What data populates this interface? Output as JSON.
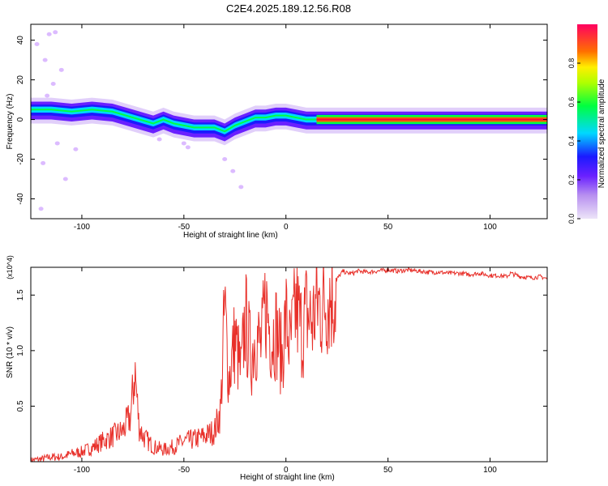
{
  "title": "C2E4.2025.189.12.56.R08",
  "chart_data": [
    {
      "type": "heatmap",
      "title": "C2E4.2025.189.12.56.R08",
      "xlabel": "Height of straight line (km)",
      "ylabel": "Frequency (Hz)",
      "xlim": [
        -125,
        128
      ],
      "ylim": [
        -50,
        48
      ],
      "x_ticks": [
        -100,
        -50,
        0,
        50,
        100
      ],
      "y_ticks": [
        -40,
        -20,
        0,
        20,
        40
      ],
      "colorbar": {
        "label": "Normalized spectral amplitude",
        "range": [
          0,
          1
        ],
        "ticks": [
          "0.0",
          "0.2",
          "0.4",
          "0.6",
          "0.8"
        ],
        "colors": [
          "#e6dcf5",
          "#9a3cff",
          "#1a1aff",
          "#00e5ff",
          "#00ff40",
          "#ffee00",
          "#ff6000",
          "#ff0060"
        ]
      },
      "ridge": {
        "name": "dominant frequency",
        "x": [
          -125,
          -115,
          -105,
          -95,
          -85,
          -75,
          -65,
          -60,
          -55,
          -45,
          -35,
          -30,
          -25,
          -20,
          -15,
          -10,
          -5,
          0,
          5,
          10,
          15,
          20,
          128
        ],
        "y": [
          5,
          5,
          4,
          5,
          4,
          1,
          -2,
          0,
          -2,
          -4,
          -4,
          -6,
          -3,
          -1,
          1,
          1,
          2,
          2,
          1,
          0,
          0,
          0,
          0
        ]
      },
      "scatter_points": {
        "x": [
          -122,
          -118,
          -116,
          -113,
          -114,
          -110,
          -112,
          -119,
          -103,
          -62,
          -50,
          -48,
          -30,
          -26,
          -22,
          -120,
          -117,
          -108
        ],
        "y": [
          38,
          30,
          43,
          44,
          18,
          25,
          -12,
          -22,
          -15,
          -10,
          -12,
          -14,
          -20,
          -26,
          -34,
          -45,
          12,
          -30
        ]
      }
    },
    {
      "type": "line",
      "xlabel": "Height of straight line (km)",
      "ylabel": "SNR (10 * v/v)",
      "y_multiplier": "(x10^4)",
      "xlim": [
        -125,
        128
      ],
      "ylim": [
        0,
        1.75
      ],
      "x_ticks": [
        -100,
        -50,
        0,
        50,
        100
      ],
      "y_ticks": [
        "0.5",
        "1.0",
        "1.5"
      ],
      "color": "#e8302a",
      "series": [
        {
          "x": [
            -125,
            -120,
            -115,
            -110,
            -105,
            -100,
            -95,
            -90,
            -85,
            -80,
            -76,
            -74,
            -72,
            -70,
            -65,
            -60,
            -55,
            -50,
            -45,
            -40,
            -35,
            -32,
            -30,
            -28,
            -25,
            -22,
            -20,
            -17,
            -15,
            -12,
            -10,
            -7,
            -5,
            -2,
            0,
            2,
            5,
            8,
            10,
            13,
            15,
            18,
            20,
            22,
            25,
            28,
            30,
            33,
            35,
            40,
            45,
            50,
            55,
            60,
            65,
            70,
            75,
            80,
            85,
            90,
            95,
            100,
            105,
            108,
            110,
            115,
            120,
            125,
            128
          ],
          "y": [
            0.02,
            0.03,
            0.05,
            0.05,
            0.08,
            0.1,
            0.14,
            0.2,
            0.25,
            0.3,
            0.45,
            0.9,
            0.35,
            0.25,
            0.15,
            0.12,
            0.15,
            0.2,
            0.22,
            0.25,
            0.3,
            0.5,
            1.5,
            0.8,
            1.2,
            0.85,
            1.4,
            1.0,
            1.25,
            1.1,
            1.55,
            1.2,
            1.3,
            1.0,
            1.4,
            1.1,
            1.5,
            1.25,
            1.45,
            1.35,
            1.55,
            1.5,
            1.6,
            1.62,
            1.65,
            1.72,
            1.7,
            1.7,
            1.72,
            1.71,
            1.72,
            1.73,
            1.72,
            1.73,
            1.72,
            1.71,
            1.71,
            1.7,
            1.7,
            1.69,
            1.7,
            1.68,
            1.68,
            1.67,
            1.7,
            1.67,
            1.66,
            1.67,
            1.65
          ]
        }
      ]
    }
  ]
}
